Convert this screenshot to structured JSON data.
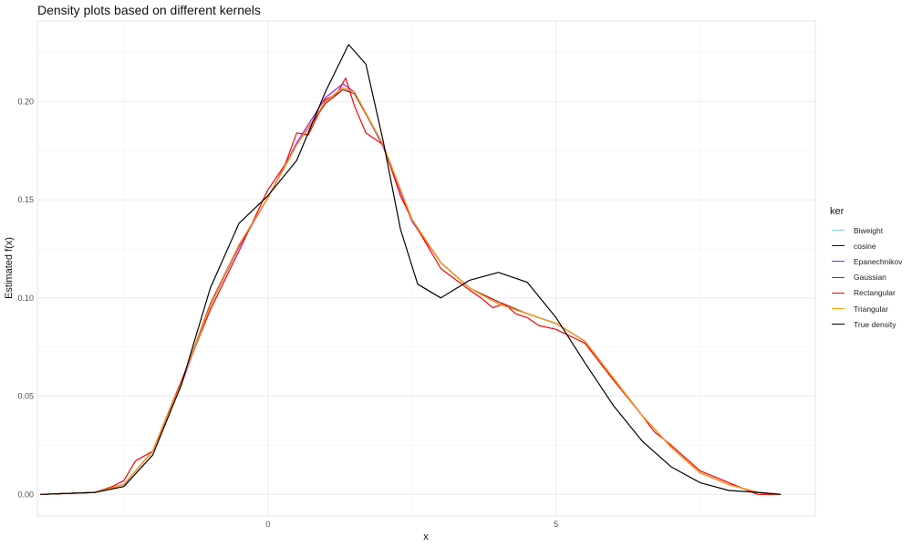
{
  "chart_data": {
    "type": "line",
    "title": "Density plots based on different kernels",
    "xlabel": "x",
    "ylabel": "Estimated f(x)",
    "xlim": [
      -4.0,
      9.5
    ],
    "ylim": [
      -0.011,
      0.241
    ],
    "x_ticks": [
      0,
      5
    ],
    "x_tick_labels": [
      "0",
      "5"
    ],
    "y_ticks": [
      0.0,
      0.05,
      0.1,
      0.15,
      0.2
    ],
    "y_tick_labels": [
      "0.00",
      "0.05",
      "0.10",
      "0.15",
      "0.20"
    ],
    "grid": true,
    "legend_title": "ker",
    "legend_position": "right",
    "series": [
      {
        "name": "Biweight",
        "color": "#87ceeb",
        "x": [
          -3.95,
          -3.0,
          -2.5,
          -2.0,
          -1.5,
          -1.0,
          -0.5,
          0.0,
          0.5,
          1.0,
          1.3,
          1.5,
          2.0,
          2.5,
          3.0,
          3.5,
          4.0,
          4.5,
          5.0,
          5.5,
          6.0,
          6.5,
          7.0,
          7.5,
          8.0,
          8.5,
          8.9
        ],
        "y": [
          0.0,
          0.001,
          0.005,
          0.022,
          0.057,
          0.097,
          0.127,
          0.151,
          0.178,
          0.199,
          0.206,
          0.205,
          0.178,
          0.14,
          0.118,
          0.105,
          0.098,
          0.092,
          0.087,
          0.078,
          0.059,
          0.04,
          0.024,
          0.011,
          0.005,
          0.001,
          0.0
        ]
      },
      {
        "name": "cosine",
        "color": "#0000cd",
        "x": [
          -3.95,
          -3.0,
          -2.5,
          -2.0,
          -1.5,
          -1.0,
          -0.5,
          0.0,
          0.5,
          1.0,
          1.3,
          1.5,
          2.0,
          2.5,
          3.0,
          3.5,
          4.0,
          4.5,
          5.0,
          5.5,
          6.0,
          6.5,
          7.0,
          7.5,
          8.0,
          8.5,
          8.9
        ],
        "y": [
          0.0,
          0.001,
          0.005,
          0.022,
          0.057,
          0.096,
          0.127,
          0.151,
          0.178,
          0.2,
          0.207,
          0.205,
          0.178,
          0.14,
          0.118,
          0.105,
          0.097,
          0.092,
          0.087,
          0.078,
          0.059,
          0.04,
          0.024,
          0.011,
          0.005,
          0.001,
          0.0
        ]
      },
      {
        "name": "Epanechnikov",
        "color": "#a020f0",
        "x": [
          -3.95,
          -3.0,
          -2.5,
          -2.0,
          -1.5,
          -1.0,
          -0.5,
          0.0,
          0.5,
          1.0,
          1.3,
          1.5,
          2.0,
          2.5,
          3.0,
          3.5,
          4.0,
          4.5,
          5.0,
          5.5,
          6.0,
          6.5,
          7.0,
          7.5,
          8.0,
          8.5,
          8.9
        ],
        "y": [
          0.0,
          0.001,
          0.005,
          0.022,
          0.056,
          0.096,
          0.126,
          0.151,
          0.179,
          0.202,
          0.209,
          0.205,
          0.177,
          0.139,
          0.118,
          0.105,
          0.097,
          0.092,
          0.087,
          0.078,
          0.059,
          0.04,
          0.024,
          0.011,
          0.005,
          0.001,
          0.0
        ]
      },
      {
        "name": "Gaussian",
        "color": "#b22222",
        "x": [
          -3.95,
          -3.0,
          -2.5,
          -2.0,
          -1.5,
          -1.0,
          -0.5,
          0.0,
          0.5,
          1.0,
          1.3,
          1.5,
          2.0,
          2.5,
          3.0,
          3.5,
          4.0,
          4.5,
          5.0,
          5.5,
          6.0,
          6.5,
          7.0,
          7.5,
          8.0,
          8.5,
          8.9
        ],
        "y": [
          0.0,
          0.001,
          0.005,
          0.022,
          0.057,
          0.097,
          0.127,
          0.151,
          0.178,
          0.199,
          0.206,
          0.204,
          0.178,
          0.14,
          0.118,
          0.105,
          0.098,
          0.092,
          0.087,
          0.078,
          0.059,
          0.04,
          0.024,
          0.011,
          0.005,
          0.001,
          0.0
        ]
      },
      {
        "name": "Rectangular",
        "color": "#ff0000",
        "x": [
          -3.95,
          -3.0,
          -2.7,
          -2.5,
          -2.3,
          -2.0,
          -1.5,
          -1.0,
          -0.5,
          0.0,
          0.3,
          0.5,
          0.7,
          1.0,
          1.2,
          1.35,
          1.5,
          1.7,
          2.0,
          2.3,
          2.5,
          3.0,
          3.5,
          3.7,
          3.9,
          4.1,
          4.3,
          4.5,
          4.7,
          5.0,
          5.5,
          6.0,
          6.5,
          6.7,
          7.0,
          7.5,
          8.0,
          8.5,
          8.9
        ],
        "y": [
          0.0,
          0.001,
          0.004,
          0.007,
          0.017,
          0.022,
          0.058,
          0.094,
          0.124,
          0.155,
          0.168,
          0.184,
          0.183,
          0.201,
          0.204,
          0.212,
          0.198,
          0.184,
          0.178,
          0.152,
          0.14,
          0.115,
          0.104,
          0.1,
          0.095,
          0.097,
          0.092,
          0.09,
          0.086,
          0.084,
          0.077,
          0.058,
          0.04,
          0.032,
          0.025,
          0.012,
          0.006,
          0.0,
          0.0
        ]
      },
      {
        "name": "Triangular",
        "color": "#ffa500",
        "x": [
          -3.95,
          -3.0,
          -2.5,
          -2.0,
          -1.5,
          -1.0,
          -0.5,
          0.0,
          0.5,
          1.0,
          1.3,
          1.5,
          2.0,
          2.5,
          3.0,
          3.5,
          4.0,
          4.5,
          5.0,
          5.5,
          6.0,
          6.5,
          7.0,
          7.5,
          8.0,
          8.5,
          8.9
        ],
        "y": [
          0.0,
          0.001,
          0.005,
          0.022,
          0.057,
          0.096,
          0.127,
          0.151,
          0.178,
          0.2,
          0.207,
          0.205,
          0.178,
          0.14,
          0.118,
          0.105,
          0.097,
          0.092,
          0.087,
          0.078,
          0.059,
          0.04,
          0.024,
          0.011,
          0.005,
          0.001,
          0.0
        ]
      },
      {
        "name": "True density",
        "color": "#000000",
        "x": [
          -3.95,
          -3.0,
          -2.5,
          -2.0,
          -1.5,
          -1.0,
          -0.5,
          0.0,
          0.5,
          1.0,
          1.4,
          1.7,
          2.0,
          2.3,
          2.6,
          3.0,
          3.5,
          4.0,
          4.5,
          5.0,
          5.5,
          6.0,
          6.5,
          7.0,
          7.5,
          8.0,
          8.5,
          8.9
        ],
        "y": [
          0.0,
          0.001,
          0.004,
          0.02,
          0.056,
          0.105,
          0.138,
          0.152,
          0.17,
          0.205,
          0.229,
          0.219,
          0.18,
          0.135,
          0.107,
          0.1,
          0.109,
          0.113,
          0.108,
          0.09,
          0.067,
          0.045,
          0.027,
          0.014,
          0.006,
          0.002,
          0.001,
          0.0
        ]
      }
    ]
  }
}
